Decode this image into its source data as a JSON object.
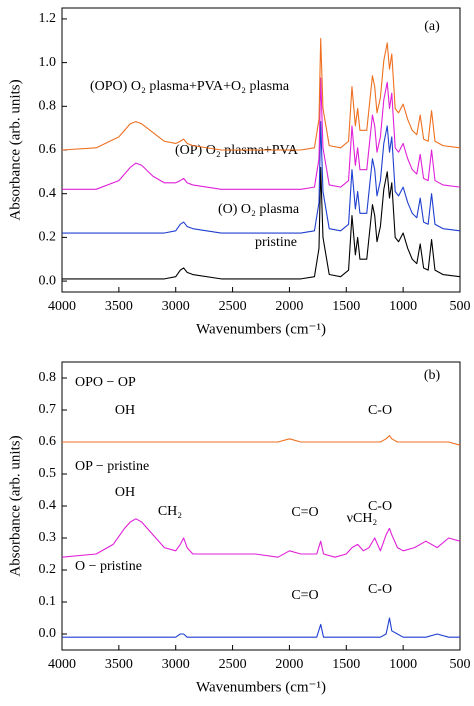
{
  "chart_data": [
    {
      "type": "line",
      "annotations": [
        "(a)"
      ],
      "xlabel": "Wavenumbers (cm⁻¹)",
      "ylabel": "Absorbance (arb. units)",
      "x": [
        4000,
        3700,
        3500,
        3400,
        3350,
        3300,
        3200,
        3100,
        3000,
        2960,
        2930,
        2900,
        2850,
        2600,
        2300,
        2100,
        1900,
        1780,
        1740,
        1725,
        1705,
        1650,
        1550,
        1480,
        1450,
        1420,
        1400,
        1380,
        1320,
        1270,
        1250,
        1230,
        1200,
        1170,
        1140,
        1120,
        1100,
        1070,
        1040,
        1000,
        960,
        920,
        880,
        850,
        820,
        780,
        750,
        720,
        650,
        500
      ],
      "xlim": [
        4000,
        500
      ],
      "xticks": [
        4000,
        3500,
        3000,
        2500,
        2000,
        1500,
        1000,
        500
      ],
      "ylim": [
        -0.05,
        1.25
      ],
      "yticks": [
        {
          "value": 0,
          "label": "0.0"
        },
        {
          "value": 0.2,
          "label": "0.2"
        },
        {
          "value": 0.4,
          "label": "0.4"
        },
        {
          "value": 0.6,
          "label": "0.6"
        },
        {
          "value": 0.8,
          "label": "0.8"
        },
        {
          "value": 1,
          "label": "1.0"
        },
        {
          "value": 1.2,
          "label": "1.2"
        }
      ],
      "series": [
        {
          "name": "pristine",
          "color": "#000000",
          "values": [
            0.01,
            0.01,
            0.01,
            0.01,
            0.01,
            0.01,
            0.01,
            0.01,
            0.02,
            0.05,
            0.06,
            0.04,
            0.03,
            0.01,
            0.01,
            0.01,
            0.01,
            0.02,
            0.15,
            0.52,
            0.2,
            0.03,
            0.02,
            0.05,
            0.3,
            0.12,
            0.2,
            0.1,
            0.1,
            0.35,
            0.3,
            0.18,
            0.25,
            0.42,
            0.5,
            0.38,
            0.45,
            0.2,
            0.18,
            0.22,
            0.15,
            0.1,
            0.08,
            0.17,
            0.06,
            0.05,
            0.19,
            0.05,
            0.03,
            0.02
          ]
        },
        {
          "name": "(O)  O₂ plasma",
          "color": "#1f3fd0",
          "values": [
            0.22,
            0.22,
            0.22,
            0.22,
            0.22,
            0.22,
            0.22,
            0.22,
            0.23,
            0.26,
            0.27,
            0.25,
            0.24,
            0.22,
            0.22,
            0.22,
            0.22,
            0.23,
            0.36,
            0.73,
            0.41,
            0.24,
            0.23,
            0.26,
            0.51,
            0.33,
            0.41,
            0.31,
            0.31,
            0.56,
            0.51,
            0.39,
            0.46,
            0.63,
            0.71,
            0.59,
            0.66,
            0.41,
            0.39,
            0.43,
            0.36,
            0.31,
            0.29,
            0.38,
            0.27,
            0.26,
            0.4,
            0.26,
            0.24,
            0.23
          ]
        },
        {
          "name": "(OP) O₂ plasma+PVA",
          "color": "#e020d8",
          "values": [
            0.42,
            0.42,
            0.46,
            0.52,
            0.54,
            0.53,
            0.48,
            0.45,
            0.45,
            0.46,
            0.47,
            0.45,
            0.44,
            0.42,
            0.42,
            0.42,
            0.42,
            0.43,
            0.56,
            0.93,
            0.61,
            0.44,
            0.43,
            0.46,
            0.71,
            0.53,
            0.61,
            0.51,
            0.51,
            0.76,
            0.71,
            0.59,
            0.66,
            0.83,
            0.91,
            0.79,
            0.86,
            0.61,
            0.59,
            0.63,
            0.56,
            0.51,
            0.49,
            0.58,
            0.47,
            0.46,
            0.6,
            0.46,
            0.44,
            0.43
          ]
        },
        {
          "name": "(OPO) O₂ plasma+PVA+O₂ plasma",
          "color": "#ee7020",
          "values": [
            0.6,
            0.61,
            0.66,
            0.72,
            0.73,
            0.72,
            0.68,
            0.64,
            0.63,
            0.64,
            0.65,
            0.63,
            0.62,
            0.6,
            0.6,
            0.6,
            0.6,
            0.61,
            0.74,
            1.11,
            0.79,
            0.62,
            0.61,
            0.64,
            0.89,
            0.71,
            0.79,
            0.69,
            0.69,
            0.94,
            0.89,
            0.77,
            0.84,
            1.01,
            1.09,
            0.97,
            1.04,
            0.79,
            0.77,
            0.81,
            0.74,
            0.69,
            0.67,
            0.76,
            0.65,
            0.64,
            0.78,
            0.64,
            0.62,
            0.61
          ]
        }
      ]
    },
    {
      "type": "line",
      "annotations": [
        "(b)",
        "OH",
        "C-O",
        "OH",
        "CH₂",
        "C=O",
        "νCH₂",
        "C-O",
        "C=O",
        "C-O"
      ],
      "xlabel": "Wavenumbers (cm⁻¹)",
      "ylabel": "Absorbance (arb. units)",
      "x": [
        4000,
        3700,
        3550,
        3450,
        3400,
        3350,
        3300,
        3200,
        3100,
        3000,
        2960,
        2930,
        2900,
        2850,
        2700,
        2500,
        2300,
        2100,
        2000,
        1900,
        1800,
        1760,
        1725,
        1700,
        1600,
        1500,
        1450,
        1400,
        1350,
        1300,
        1250,
        1200,
        1150,
        1120,
        1100,
        1050,
        1000,
        900,
        800,
        700,
        600,
        500
      ],
      "xlim": [
        4000,
        500
      ],
      "xticks": [
        4000,
        3500,
        3000,
        2500,
        2000,
        1500,
        1000,
        500
      ],
      "ylim": [
        -0.05,
        0.85
      ],
      "yticks": [
        {
          "value": 0,
          "label": "0.0"
        },
        {
          "value": 0.1,
          "label": "0.1"
        },
        {
          "value": 0.2,
          "label": "0.2"
        },
        {
          "value": 0.3,
          "label": "0.3"
        },
        {
          "value": 0.4,
          "label": "0.4"
        },
        {
          "value": 0.5,
          "label": "0.5"
        },
        {
          "value": 0.6,
          "label": "0.6"
        },
        {
          "value": 0.7,
          "label": "0.7"
        },
        {
          "value": 0.8,
          "label": "0.8"
        }
      ],
      "series": [
        {
          "name": "OPO − OP",
          "color": "#ee7020",
          "values": [
            0.6,
            0.6,
            0.6,
            0.6,
            0.6,
            0.6,
            0.6,
            0.6,
            0.6,
            0.6,
            0.6,
            0.6,
            0.6,
            0.6,
            0.6,
            0.6,
            0.6,
            0.6,
            0.61,
            0.6,
            0.6,
            0.6,
            0.6,
            0.6,
            0.6,
            0.6,
            0.6,
            0.6,
            0.6,
            0.6,
            0.6,
            0.6,
            0.61,
            0.62,
            0.61,
            0.6,
            0.6,
            0.6,
            0.6,
            0.6,
            0.6,
            0.59
          ]
        },
        {
          "name": "OP − pristine",
          "color": "#e020d8",
          "values": [
            0.24,
            0.25,
            0.28,
            0.33,
            0.35,
            0.36,
            0.35,
            0.31,
            0.27,
            0.26,
            0.28,
            0.3,
            0.27,
            0.25,
            0.25,
            0.25,
            0.25,
            0.24,
            0.26,
            0.25,
            0.25,
            0.25,
            0.29,
            0.25,
            0.24,
            0.25,
            0.27,
            0.28,
            0.26,
            0.27,
            0.3,
            0.26,
            0.31,
            0.33,
            0.31,
            0.27,
            0.26,
            0.27,
            0.29,
            0.27,
            0.3,
            0.29
          ]
        },
        {
          "name": "O − pristine",
          "color": "#1f3fd0",
          "values": [
            -0.01,
            -0.01,
            -0.01,
            -0.01,
            -0.01,
            -0.01,
            -0.01,
            -0.01,
            -0.01,
            -0.01,
            0,
            0,
            -0.01,
            -0.01,
            -0.01,
            -0.01,
            -0.01,
            -0.01,
            -0.01,
            -0.01,
            -0.01,
            -0.01,
            0.03,
            -0.01,
            -0.01,
            -0.01,
            -0.01,
            -0.01,
            -0.01,
            -0.01,
            -0.01,
            -0.01,
            0,
            0.05,
            0.01,
            0,
            -0.01,
            -0.01,
            -0.01,
            0,
            -0.01,
            -0.01
          ]
        }
      ]
    }
  ]
}
